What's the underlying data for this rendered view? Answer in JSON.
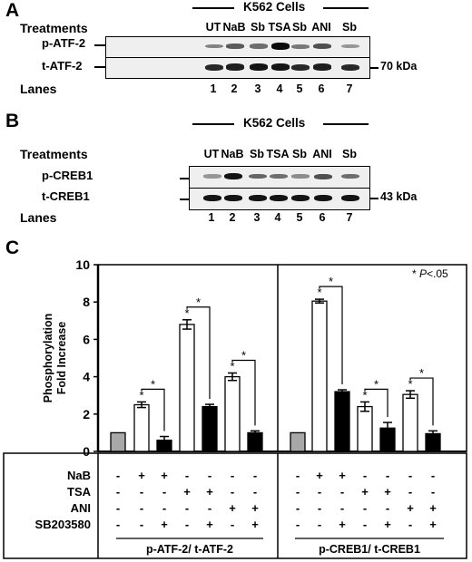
{
  "panelA": {
    "letter": "A",
    "cells_title": "K562 Cells",
    "treatments_label": "Treatments",
    "treatments": [
      "UT",
      "NaB",
      "Sb",
      "TSA",
      "Sb",
      "ANI",
      "Sb"
    ],
    "rows": [
      {
        "label": "p-ATF-2",
        "band_intensity": [
          0.35,
          0.55,
          0.45,
          0.95,
          0.4,
          0.6,
          0.25
        ]
      },
      {
        "label": "t-ATF-2",
        "band_intensity": [
          0.8,
          0.85,
          0.9,
          0.9,
          0.8,
          0.85,
          0.8
        ]
      }
    ],
    "marker": "70 kDa",
    "lanes_label": "Lanes",
    "lanes": [
      "1",
      "2",
      "3",
      "4",
      "5",
      "6",
      "7"
    ]
  },
  "panelB": {
    "letter": "B",
    "cells_title": "K562 Cells",
    "treatments_label": "Treatments",
    "treatments": [
      "UT",
      "NaB",
      "Sb",
      "TSA",
      "Sb",
      "ANI",
      "Sb"
    ],
    "rows": [
      {
        "label": "p-CREB1",
        "band_intensity": [
          0.25,
          0.9,
          0.5,
          0.45,
          0.3,
          0.6,
          0.45
        ]
      },
      {
        "label": "t-CREB1",
        "band_intensity": [
          0.9,
          0.9,
          0.9,
          0.9,
          0.9,
          0.9,
          0.9
        ]
      }
    ],
    "marker": "43 kDa",
    "lanes_label": "Lanes",
    "lanes": [
      "1",
      "2",
      "3",
      "4",
      "5",
      "6",
      "7"
    ]
  },
  "panelC": {
    "letter": "C",
    "chart_data": {
      "type": "bar",
      "ylabel_line1": "Phosphorylation",
      "ylabel_line2": "Fold Increase",
      "ylim": [
        0,
        10
      ],
      "yticks": [
        "0",
        "2",
        "4",
        "6",
        "8",
        "10"
      ],
      "annotation_prefix": "* ",
      "annotation_p": "P",
      "annotation_rest": "<.05",
      "groups": [
        {
          "name": "p-ATF-2/ t-ATF-2",
          "values": [
            1.0,
            2.5,
            0.6,
            6.8,
            2.4,
            4.0,
            1.0
          ],
          "errors": [
            0,
            0.15,
            0.2,
            0.25,
            0.12,
            0.2,
            0.1
          ],
          "fills": [
            "gray",
            "white",
            "black",
            "white",
            "black",
            "white",
            "black"
          ]
        },
        {
          "name": "p-CREB1/ t-CREB1",
          "values": [
            1.0,
            8.05,
            3.2,
            2.4,
            1.25,
            3.05,
            0.95
          ],
          "errors": [
            0,
            0.1,
            0.1,
            0.25,
            0.3,
            0.2,
            0.15
          ],
          "fills": [
            "gray",
            "white",
            "black",
            "white",
            "black",
            "white",
            "black"
          ]
        }
      ],
      "significance_mark": "*",
      "star_above_bars": [
        1,
        3,
        5
      ],
      "brackets": [
        [
          1,
          2
        ],
        [
          3,
          4
        ],
        [
          5,
          6
        ]
      ]
    },
    "design_table": {
      "rows": [
        {
          "label": "NaB",
          "group1": [
            "-",
            "+",
            "+",
            "-",
            "-",
            "-",
            "-"
          ],
          "group2": [
            "-",
            "+",
            "+",
            "-",
            "-",
            "-",
            "-"
          ]
        },
        {
          "label": "TSA",
          "group1": [
            "-",
            "-",
            "-",
            "+",
            "+",
            "-",
            "-"
          ],
          "group2": [
            "-",
            "-",
            "-",
            "+",
            "+",
            "-",
            "-"
          ]
        },
        {
          "label": "ANI",
          "group1": [
            "-",
            "-",
            "-",
            "-",
            "-",
            "+",
            "+"
          ],
          "group2": [
            "-",
            "-",
            "-",
            "-",
            "-",
            "+",
            "+"
          ]
        },
        {
          "label": "SB203580",
          "group1": [
            "-",
            "-",
            "+",
            "-",
            "+",
            "-",
            "+"
          ],
          "group2": [
            "-",
            "-",
            "+",
            "-",
            "+",
            "-",
            "+"
          ]
        }
      ]
    }
  }
}
